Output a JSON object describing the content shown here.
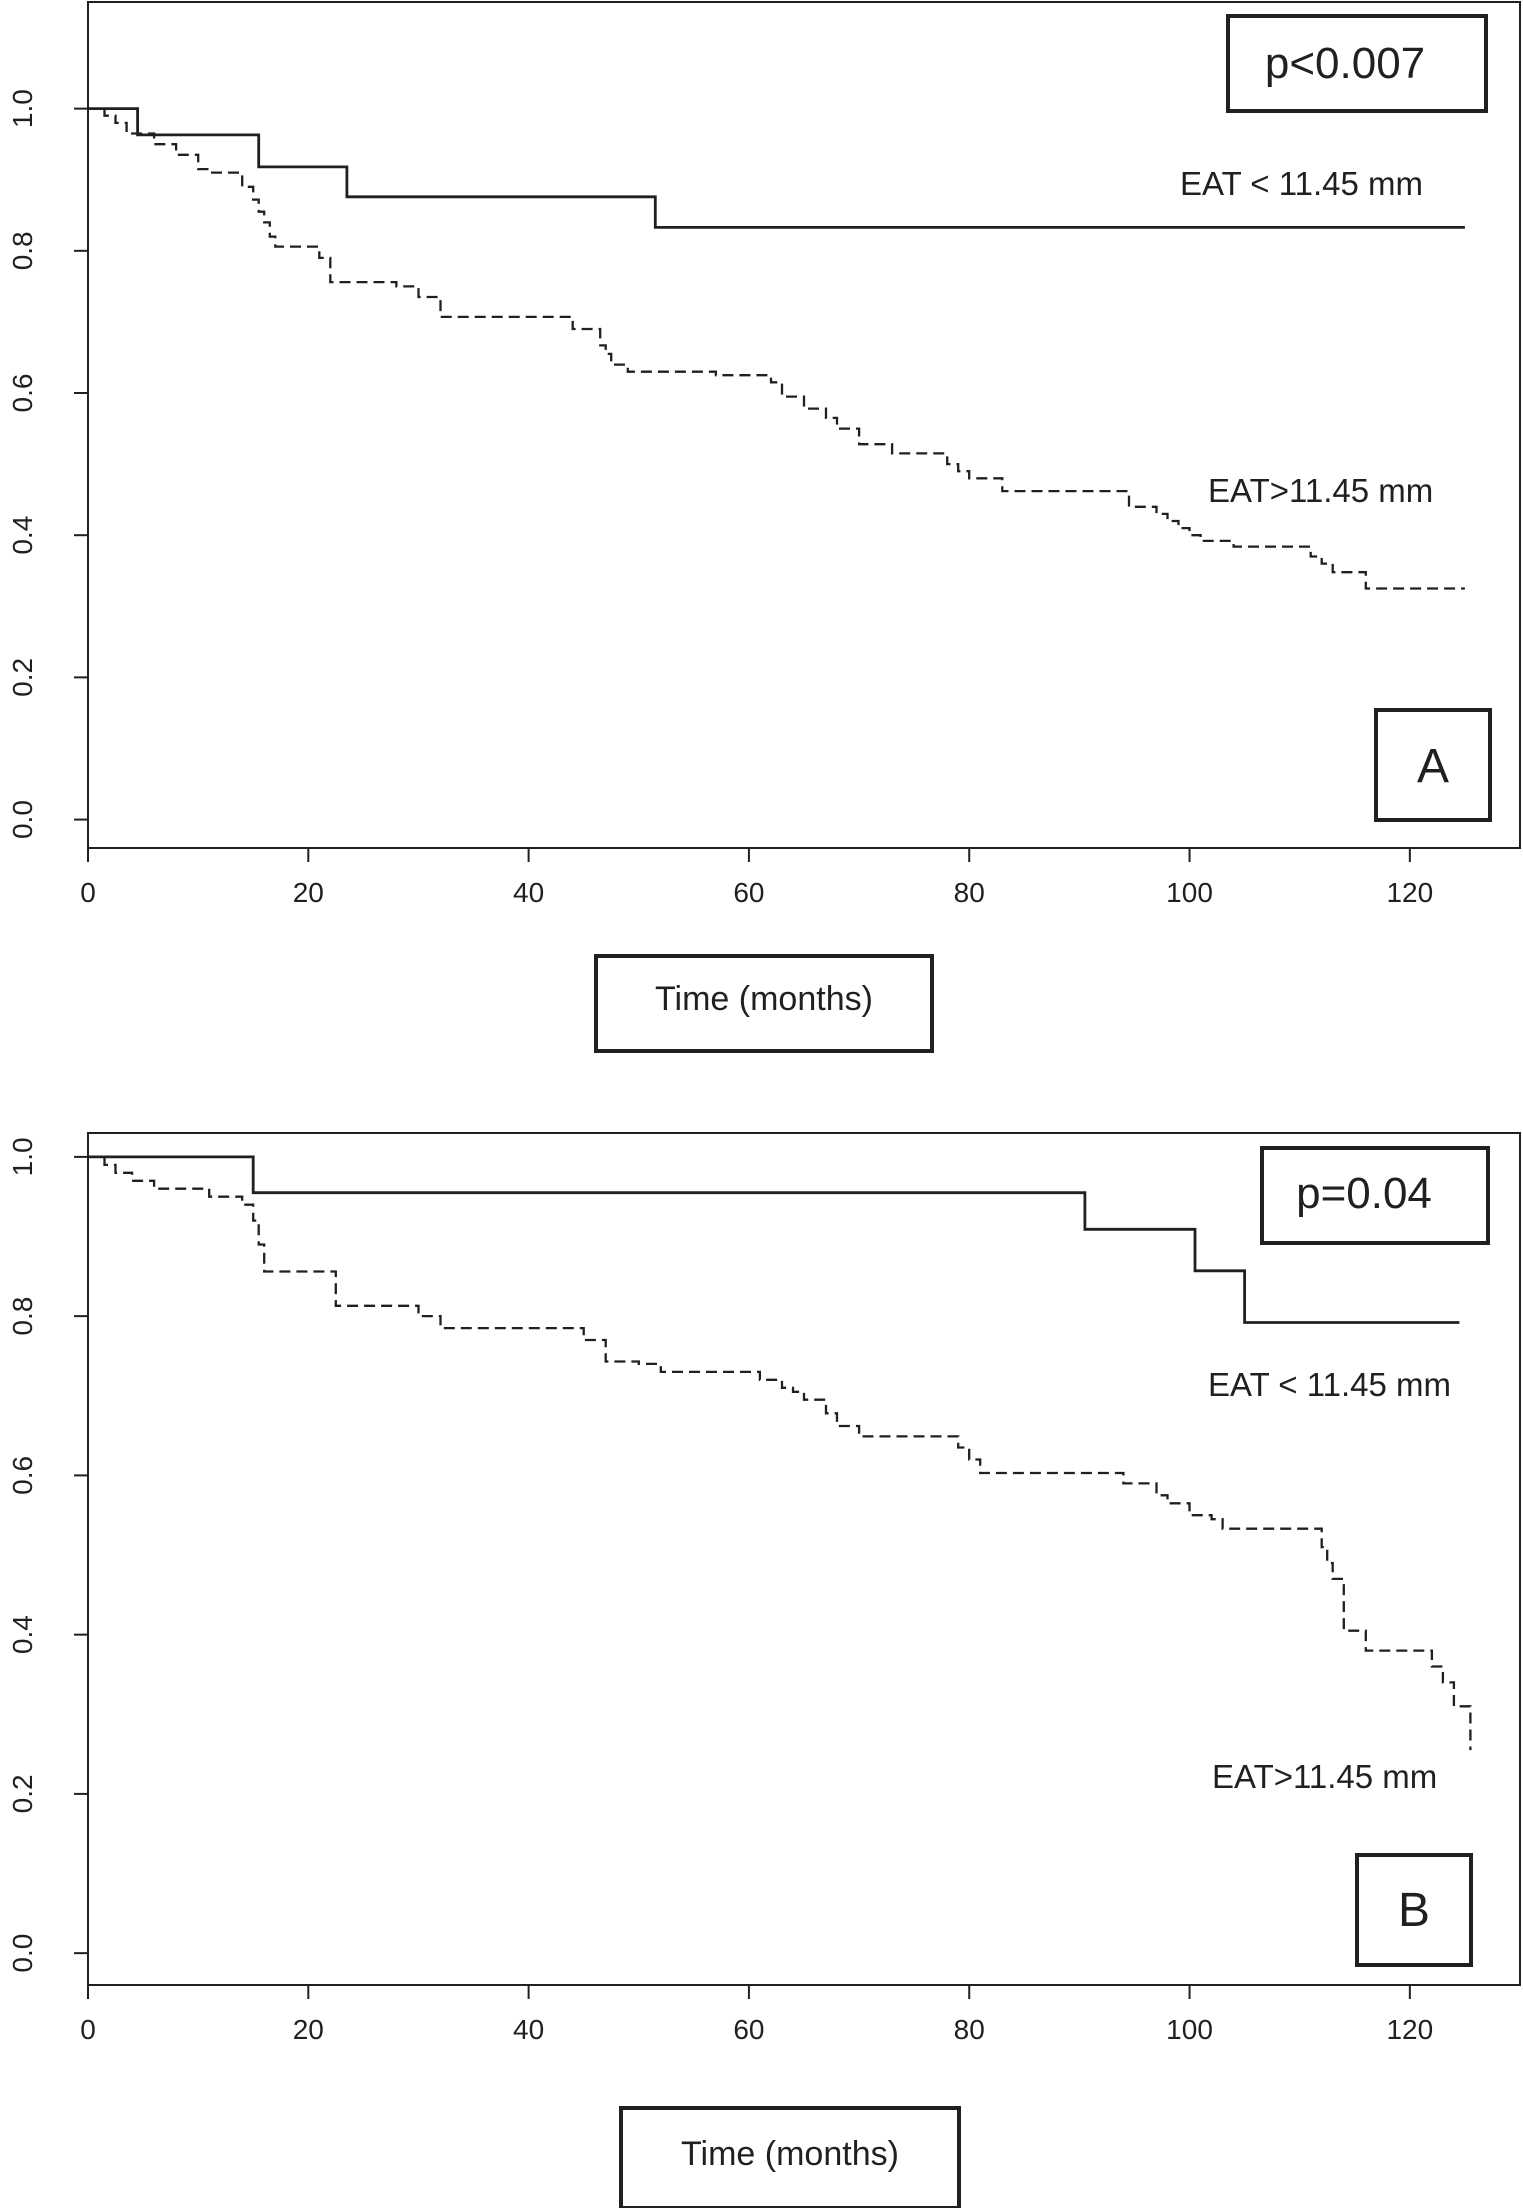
{
  "chart_data": [
    {
      "type": "line",
      "panel_label": "A",
      "p_value": "p<0.007",
      "xlabel": "Time (months)",
      "ylabel": "",
      "xlim": [
        0,
        130
      ],
      "ylim": [
        -0.04,
        1.15
      ],
      "xticks": [
        0,
        20,
        40,
        60,
        80,
        100,
        120
      ],
      "xtick_labels": [
        "0",
        "20",
        "40",
        "60",
        "80",
        "100",
        "120"
      ],
      "yticks": [
        0.0,
        0.2,
        0.4,
        0.6,
        0.8,
        1.0
      ],
      "ytick_labels": [
        "0.0",
        "0.2",
        "0.4",
        "0.6",
        "0.8",
        "1.0"
      ],
      "grid": false,
      "series": [
        {
          "name": "EAT < 11.45 mm",
          "style": "solid",
          "x": [
            0,
            4.5,
            15.5,
            23.5,
            51.5,
            125
          ],
          "y": [
            1.0,
            0.963,
            0.918,
            0.876,
            0.833,
            0.833
          ]
        },
        {
          "name": "EAT>11.45 mm",
          "style": "dashed",
          "x": [
            0,
            1.5,
            2.5,
            3.5,
            6,
            8,
            10,
            11,
            14,
            15,
            15.5,
            16,
            16.5,
            17,
            21,
            22,
            28,
            30,
            32,
            44,
            46.5,
            47,
            47.5,
            49,
            57,
            62,
            63,
            65,
            67,
            68,
            70,
            73,
            78,
            79,
            80,
            83,
            89,
            94.5,
            97,
            98,
            99,
            100,
            101,
            104,
            111,
            112,
            113,
            116,
            125
          ],
          "y": [
            1.0,
            0.99,
            0.98,
            0.965,
            0.95,
            0.935,
            0.915,
            0.91,
            0.89,
            0.872,
            0.855,
            0.84,
            0.82,
            0.806,
            0.79,
            0.756,
            0.75,
            0.735,
            0.707,
            0.69,
            0.667,
            0.655,
            0.64,
            0.63,
            0.625,
            0.615,
            0.595,
            0.578,
            0.565,
            0.55,
            0.528,
            0.515,
            0.5,
            0.49,
            0.48,
            0.462,
            0.462,
            0.44,
            0.43,
            0.42,
            0.41,
            0.4,
            0.392,
            0.384,
            0.37,
            0.36,
            0.348,
            0.325,
            0.325
          ]
        }
      ]
    },
    {
      "type": "line",
      "panel_label": "B",
      "p_value": "p=0.04",
      "xlabel": "Time (months)",
      "ylabel": "",
      "xlim": [
        0,
        130
      ],
      "ylim": [
        -0.04,
        1.03
      ],
      "xticks": [
        0,
        20,
        40,
        60,
        80,
        100,
        120
      ],
      "xtick_labels": [
        "0",
        "20",
        "40",
        "60",
        "80",
        "100",
        "120"
      ],
      "yticks": [
        0.0,
        0.2,
        0.4,
        0.6,
        0.8,
        1.0
      ],
      "ytick_labels": [
        "0.0",
        "0.2",
        "0.4",
        "0.6",
        "0.8",
        "1.0"
      ],
      "grid": false,
      "series": [
        {
          "name": "EAT < 11.45 mm",
          "style": "solid",
          "x": [
            0,
            15,
            90.5,
            100.5,
            105,
            124.5
          ],
          "y": [
            1.0,
            0.955,
            0.909,
            0.857,
            0.792,
            0.792
          ]
        },
        {
          "name": "EAT>11.45 mm",
          "style": "dashed",
          "x": [
            0,
            1.5,
            2.5,
            4,
            6,
            11,
            14,
            15,
            15.5,
            16,
            22.5,
            30,
            32,
            45,
            47,
            50,
            52,
            61,
            63,
            64,
            65,
            67,
            68,
            70,
            79,
            80,
            81,
            94,
            97,
            98,
            100,
            102,
            103,
            112,
            112.5,
            113,
            114,
            116,
            122,
            123,
            124,
            125.5
          ],
          "y": [
            1.0,
            0.99,
            0.98,
            0.97,
            0.96,
            0.95,
            0.94,
            0.92,
            0.89,
            0.856,
            0.813,
            0.8,
            0.785,
            0.77,
            0.743,
            0.74,
            0.73,
            0.72,
            0.71,
            0.705,
            0.695,
            0.678,
            0.662,
            0.649,
            0.635,
            0.62,
            0.603,
            0.59,
            0.575,
            0.565,
            0.55,
            0.545,
            0.533,
            0.51,
            0.49,
            0.47,
            0.405,
            0.38,
            0.36,
            0.34,
            0.31,
            0.255
          ]
        }
      ]
    }
  ]
}
